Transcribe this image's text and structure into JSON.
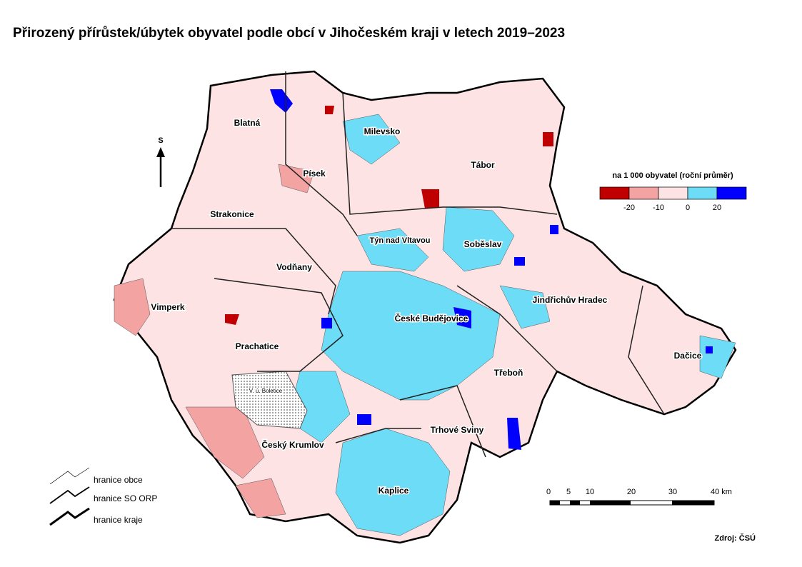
{
  "title": "Přirozený přírůstek/úbytek obyvatel podle obcí v Jihočeském kraji v letech 2019–2023",
  "north_arrow": "S",
  "legend": {
    "title": "na 1 000 obyvatel (roční průměr)",
    "colors": [
      "#c00000",
      "#f4a3a3",
      "#fde3e3",
      "#6ddcf6",
      "#0000ff"
    ],
    "labels": [
      "-20",
      "-10",
      "0",
      "20"
    ]
  },
  "places": [
    "Blatná",
    "Milevsko",
    "Písek",
    "Tábor",
    "Strakonice",
    "Týn nad Vltavou",
    "Soběslav",
    "Vodňany",
    "Vimperk",
    "Jindřichův Hradec",
    "České Budějovice",
    "Prachatice",
    "Dačice",
    "Třeboň",
    "V. ú. Boletice",
    "Trhové Sviny",
    "Český Krumlov",
    "Kaplice"
  ],
  "boundaries": [
    "hranice obce",
    "hranice SO ORP",
    "hranice kraje"
  ],
  "scale": [
    "0",
    "5",
    "10",
    "20",
    "30",
    "40 km"
  ],
  "source": "Zdroj: ČSÚ"
}
